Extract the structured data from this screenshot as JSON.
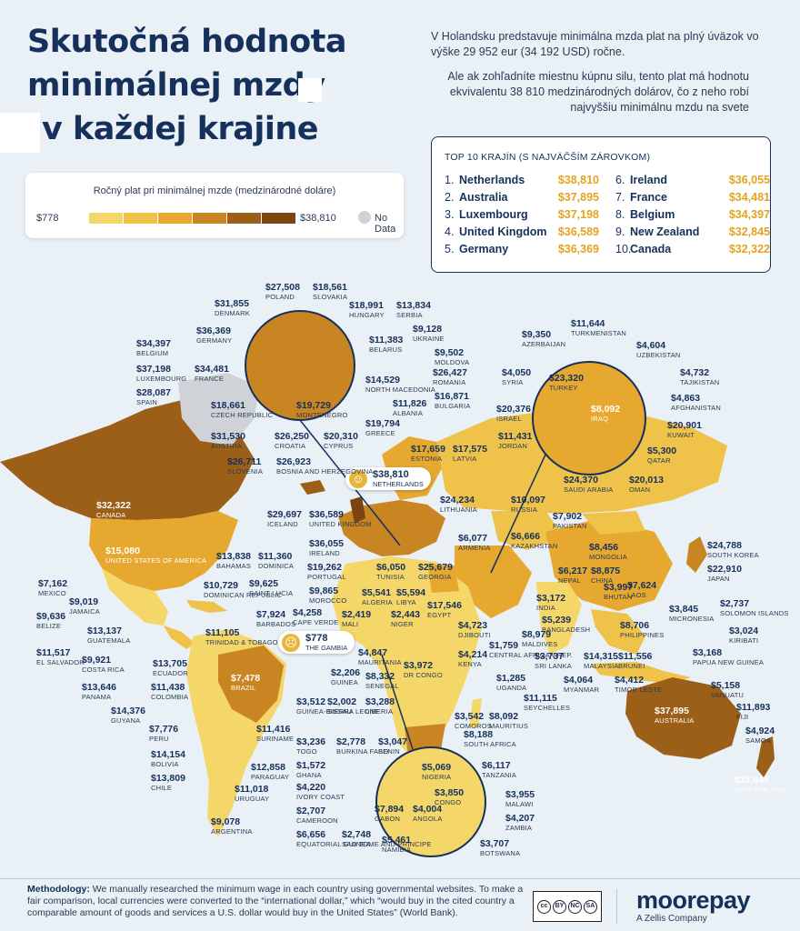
{
  "title": {
    "line1": "Skutočná hodnota",
    "line2": "minimálnej mzdy",
    "line3": "v každej krajine"
  },
  "intro": {
    "p1": "V Holandsku predstavuje minimálna mzda plat na plný úväzok vo výške 29 952 eur (34 192 USD) ročne.",
    "p2": "Ale ak zohľadníte miestnu kúpnu silu, tento plat má hodnotu ekvivalentu 38 810 medzinárodných dolárov, čo z neho robí najvyššiu minimálnu mzdu na svete"
  },
  "legend": {
    "title": "Ročný plat pri minimálnej mzde (medzinárodné doláre)",
    "min": "$778",
    "max": "$38,810",
    "no_data": "No Data",
    "scale_colors": [
      "#f4d768",
      "#efc24a",
      "#e6a82f",
      "#c98521",
      "#9c5f17",
      "#7a4510"
    ],
    "no_data_color": "#cfd3d8"
  },
  "top10": {
    "title": "TOP 10 KRAJÍN (S NAJVÄČŠÍM ZÁROVKOM)",
    "items": [
      {
        "rank": "1.",
        "name": "Netherlands",
        "value": "$38,810"
      },
      {
        "rank": "2.",
        "name": "Australia",
        "value": "$37,895"
      },
      {
        "rank": "3.",
        "name": "Luxembourg",
        "value": "$37,198"
      },
      {
        "rank": "4.",
        "name": "United Kingdom",
        "value": "$36,589"
      },
      {
        "rank": "5.",
        "name": "Germany",
        "value": "$36,369"
      },
      {
        "rank": "6.",
        "name": "Ireland",
        "value": "$36,055"
      },
      {
        "rank": "7.",
        "name": "France",
        "value": "$34,481"
      },
      {
        "rank": "8.",
        "name": "Belgium",
        "value": "$34,397"
      },
      {
        "rank": "9.",
        "name": "New Zealand",
        "value": "$32,845"
      },
      {
        "rank": "10.",
        "name": "Canada",
        "value": "$32,322"
      }
    ]
  },
  "callouts": {
    "max": {
      "value": "$38,810",
      "name": "NETHERLANDS",
      "icon": "smile-icon"
    },
    "min": {
      "value": "$778",
      "name": "THE GAMBIA",
      "icon": "sad-icon"
    }
  },
  "countries": [
    {
      "id": "poland",
      "value": "$27,508",
      "name": "POLAND"
    },
    {
      "id": "slovakia",
      "value": "$18,561",
      "name": "SLOVAKIA"
    },
    {
      "id": "denmark",
      "value": "$31,855",
      "name": "DENMARK"
    },
    {
      "id": "hungary",
      "value": "$18,991",
      "name": "HUNGARY"
    },
    {
      "id": "serbia",
      "value": "$13,834",
      "name": "SERBIA"
    },
    {
      "id": "germany",
      "value": "$36,369",
      "name": "GERMANY"
    },
    {
      "id": "ukraine",
      "value": "$9,128",
      "name": "UKRAINE"
    },
    {
      "id": "belgium",
      "value": "$34,397",
      "name": "BELGIUM"
    },
    {
      "id": "belarus",
      "value": "$11,383",
      "name": "BELARUS"
    },
    {
      "id": "moldova",
      "value": "$9,502",
      "name": "MOLDOVA"
    },
    {
      "id": "luxembourg",
      "value": "$37,198",
      "name": "LUXEMBOURG"
    },
    {
      "id": "france",
      "value": "$34,481",
      "name": "FRANCE"
    },
    {
      "id": "romania",
      "value": "$26,427",
      "name": "ROMANIA"
    },
    {
      "id": "spain",
      "value": "$28,087",
      "name": "SPAIN"
    },
    {
      "id": "north-macedonia",
      "value": "$14,529",
      "name": "NORTH MACEDONIA"
    },
    {
      "id": "bulgaria",
      "value": "$16,871",
      "name": "BULGARIA"
    },
    {
      "id": "czech",
      "value": "$18,661",
      "name": "CZECH REPUBLIC"
    },
    {
      "id": "albania",
      "value": "$11,826",
      "name": "ALBANIA"
    },
    {
      "id": "montenegro",
      "value": "$19,729",
      "name": "MONTENEGRO"
    },
    {
      "id": "greece",
      "value": "$19,794",
      "name": "GREECE"
    },
    {
      "id": "austria",
      "value": "$31,530",
      "name": "AUSTRIA"
    },
    {
      "id": "croatia",
      "value": "$26,250",
      "name": "CROATIA"
    },
    {
      "id": "cyprus",
      "value": "$20,310",
      "name": "CYPRUS"
    },
    {
      "id": "slovenia",
      "value": "$26,711",
      "name": "SLOVENIA"
    },
    {
      "id": "bosnia",
      "value": "$26,923",
      "name": "BOSNIA AND HERZEGOVINA"
    },
    {
      "id": "estonia",
      "value": "$17,659",
      "name": "ESTONIA"
    },
    {
      "id": "latvia",
      "value": "$17,575",
      "name": "LATVIA"
    },
    {
      "id": "lithuania",
      "value": "$24,234",
      "name": "LITHUANIA"
    },
    {
      "id": "iceland",
      "value": "$29,697",
      "name": "ICELAND"
    },
    {
      "id": "uk",
      "value": "$36,589",
      "name": "UNITED KINGDOM"
    },
    {
      "id": "ireland",
      "value": "$36,055",
      "name": "IRELAND"
    },
    {
      "id": "portugal",
      "value": "$19,262",
      "name": "PORTUGAL"
    },
    {
      "id": "morocco",
      "value": "$9,865",
      "name": "MOROCCO"
    },
    {
      "id": "tunisia",
      "value": "$6,050",
      "name": "TUNISIA"
    },
    {
      "id": "algeria",
      "value": "$5,541",
      "name": "ALGERIA"
    },
    {
      "id": "libya",
      "value": "$5,594",
      "name": "LIBYA"
    },
    {
      "id": "georgia",
      "value": "$25,679",
      "name": "GEORGIA"
    },
    {
      "id": "armenia",
      "value": "$6,077",
      "name": "ARMENIA"
    },
    {
      "id": "egypt",
      "value": "$17,546",
      "name": "EGYPT"
    },
    {
      "id": "cape-verde",
      "value": "$4,258",
      "name": "CAPE VERDE"
    },
    {
      "id": "mali",
      "value": "$2,419",
      "name": "MALI"
    },
    {
      "id": "niger",
      "value": "$2,443",
      "name": "NIGER"
    },
    {
      "id": "mauritania",
      "value": "$4,847",
      "name": "MAURITANIA"
    },
    {
      "id": "senegal",
      "value": "$8,332",
      "name": "SENEGAL"
    },
    {
      "id": "guinea",
      "value": "$2,206",
      "name": "GUINEA"
    },
    {
      "id": "guinea-bissau",
      "value": "$3,512",
      "name": "GUINEA-BISSAU"
    },
    {
      "id": "sierra-leone",
      "value": "$2,002",
      "name": "SIERRA LEONE"
    },
    {
      "id": "liberia",
      "value": "$3,288",
      "name": "LIBERIA"
    },
    {
      "id": "djibouti",
      "value": "$4,723",
      "name": "DJIBOUTI"
    },
    {
      "id": "car",
      "value": "$1,759",
      "name": "CENTRAL AFRICAN REP."
    },
    {
      "id": "kenya",
      "value": "$4,214",
      "name": "KENYA"
    },
    {
      "id": "dr-congo",
      "value": "$3,972",
      "name": "DR CONGO"
    },
    {
      "id": "uganda",
      "value": "$1,285",
      "name": "UGANDA"
    },
    {
      "id": "seychelles",
      "value": "$11,115",
      "name": "SEYCHELLES"
    },
    {
      "id": "comoros",
      "value": "$3,542",
      "name": "COMOROS"
    },
    {
      "id": "mauritius",
      "value": "$8,092",
      "name": "MAURITIUS"
    },
    {
      "id": "south-africa",
      "value": "$8,188",
      "name": "SOUTH AFRICA"
    },
    {
      "id": "togo",
      "value": "$3,236",
      "name": "TOGO"
    },
    {
      "id": "burkina",
      "value": "$2,778",
      "name": "BURKINA FASO"
    },
    {
      "id": "benin",
      "value": "$3,047",
      "name": "BENIN"
    },
    {
      "id": "ghana",
      "value": "$1,572",
      "name": "GHANA"
    },
    {
      "id": "nigeria",
      "value": "$5,069",
      "name": "NIGERIA"
    },
    {
      "id": "tanzania",
      "value": "$6,117",
      "name": "TANZANIA"
    },
    {
      "id": "ivory-coast",
      "value": "$4,220",
      "name": "IVORY COAST"
    },
    {
      "id": "congo",
      "value": "$3,850",
      "name": "CONGO"
    },
    {
      "id": "malawi",
      "value": "$3,955",
      "name": "MALAWI"
    },
    {
      "id": "cameroon",
      "value": "$2,707",
      "name": "CAMEROON"
    },
    {
      "id": "gabon",
      "value": "$7,894",
      "name": "GABON"
    },
    {
      "id": "angola",
      "value": "$4,004",
      "name": "ANGOLA"
    },
    {
      "id": "zambia",
      "value": "$4,207",
      "name": "ZAMBIA"
    },
    {
      "id": "eq-guinea",
      "value": "$6,656",
      "name": "EQUATORIAL GUINEA"
    },
    {
      "id": "sao-tome",
      "value": "$2,748",
      "name": "SAO TOME AND PRINCIPE"
    },
    {
      "id": "namibia",
      "value": "$5,461",
      "name": "NAMIBIA"
    },
    {
      "id": "botswana",
      "value": "$3,707",
      "name": "BOTSWANA"
    },
    {
      "id": "azerbaijan",
      "value": "$9,350",
      "name": "AZERBAIJAN"
    },
    {
      "id": "turkmenistan",
      "value": "$11,644",
      "name": "TURKMENISTAN"
    },
    {
      "id": "uzbekistan",
      "value": "$4,604",
      "name": "UZBEKISTAN"
    },
    {
      "id": "syria",
      "value": "$4,050",
      "name": "SYRIA"
    },
    {
      "id": "turkey",
      "value": "$23,320",
      "name": "TURKEY"
    },
    {
      "id": "tajikistan",
      "value": "$4,732",
      "name": "TAJIKISTAN"
    },
    {
      "id": "israel",
      "value": "$20,376",
      "name": "ISRAEL"
    },
    {
      "id": "iraq",
      "value": "$8,092",
      "name": "IRAQ"
    },
    {
      "id": "afghanistan",
      "value": "$4,863",
      "name": "AFGHANISTAN"
    },
    {
      "id": "jordan",
      "value": "$11,431",
      "name": "JORDAN"
    },
    {
      "id": "kuwait",
      "value": "$20,901",
      "name": "KUWAIT"
    },
    {
      "id": "qatar",
      "value": "$5,300",
      "name": "QATAR"
    },
    {
      "id": "saudi-arabia",
      "value": "$24,370",
      "name": "SAUDI ARABIA"
    },
    {
      "id": "oman",
      "value": "$20,013",
      "name": "OMAN"
    },
    {
      "id": "russia",
      "value": "$10,097",
      "name": "RUSSIA"
    },
    {
      "id": "pakistan",
      "value": "$7,902",
      "name": "PAKISTAN"
    },
    {
      "id": "kazakhstan",
      "value": "$6,666",
      "name": "KAZAKHSTAN"
    },
    {
      "id": "mongolia",
      "value": "$8,456",
      "name": "MONGOLIA"
    },
    {
      "id": "south-korea",
      "value": "$24,788",
      "name": "SOUTH KOREA"
    },
    {
      "id": "japan",
      "value": "$22,910",
      "name": "JAPAN"
    },
    {
      "id": "nepal",
      "value": "$6,217",
      "name": "NEPAL"
    },
    {
      "id": "china",
      "value": "$8,875",
      "name": "CHINA"
    },
    {
      "id": "laos",
      "value": "$7,624",
      "name": "LAOS"
    },
    {
      "id": "india",
      "value": "$3,172",
      "name": "INDIA"
    },
    {
      "id": "bhutan",
      "value": "$3,997",
      "name": "BHUTAN"
    },
    {
      "id": "micronesia",
      "value": "$3,845",
      "name": "MICRONESIA"
    },
    {
      "id": "solomon",
      "value": "$2,737",
      "name": "SOLOMON ISLANDS"
    },
    {
      "id": "bangladesh",
      "value": "$5,239",
      "name": "BANGLADESH"
    },
    {
      "id": "maldives",
      "value": "$8,979",
      "name": "MALDIVES"
    },
    {
      "id": "philippines",
      "value": "$8,706",
      "name": "PHILIPPINES"
    },
    {
      "id": "kiribati",
      "value": "$3,024",
      "name": "KIRIBATI"
    },
    {
      "id": "sri-lanka",
      "value": "$3,737",
      "name": "SRI LANKA"
    },
    {
      "id": "malaysia",
      "value": "$14,315",
      "name": "MALAYSIA"
    },
    {
      "id": "brunei",
      "value": "$11,556",
      "name": "BRUNEI"
    },
    {
      "id": "png",
      "value": "$3,168",
      "name": "PAPUA NEW GUINEA"
    },
    {
      "id": "myanmar",
      "value": "$4,064",
      "name": "MYANMAR"
    },
    {
      "id": "timor",
      "value": "$4,412",
      "name": "TIMOR LESTE"
    },
    {
      "id": "vanuatu",
      "value": "$5,158",
      "name": "VANUATU"
    },
    {
      "id": "fiji",
      "value": "$11,893",
      "name": "FIJI"
    },
    {
      "id": "australia",
      "value": "$37,895",
      "name": "AUSTRALIA"
    },
    {
      "id": "samoa",
      "value": "$4,924",
      "name": "SAMOA"
    },
    {
      "id": "new-zealand",
      "value": "$32,845",
      "name": "NEW ZEALAND"
    },
    {
      "id": "canada",
      "value": "$32,322",
      "name": "CANADA"
    },
    {
      "id": "usa",
      "value": "$15,080",
      "name": "UNITED STATES OF AMERICA"
    },
    {
      "id": "bahamas",
      "value": "$13,838",
      "name": "BAHAMAS"
    },
    {
      "id": "dominica",
      "value": "$11,360",
      "name": "DOMINICA"
    },
    {
      "id": "mexico",
      "value": "$7,162",
      "name": "MEXICO"
    },
    {
      "id": "dominican",
      "value": "$10,729",
      "name": "DOMINICAN REPUBLIC"
    },
    {
      "id": "saint-lucia",
      "value": "$9,625",
      "name": "SAINT LUCIA"
    },
    {
      "id": "jamaica",
      "value": "$9,019",
      "name": "JAMAICA"
    },
    {
      "id": "belize",
      "value": "$9,636",
      "name": "BELIZE"
    },
    {
      "id": "barbados",
      "value": "$7,924",
      "name": "BARBADOS"
    },
    {
      "id": "guatemala",
      "value": "$13,137",
      "name": "GUATEMALA"
    },
    {
      "id": "trinidad",
      "value": "$11,105",
      "name": "TRINIDAD & TOBAGO"
    },
    {
      "id": "el-salvador",
      "value": "$11,517",
      "name": "EL SALVADOR"
    },
    {
      "id": "costa-rica",
      "value": "$9,921",
      "name": "COSTA RICA"
    },
    {
      "id": "ecuador",
      "value": "$13,705",
      "name": "ECUADOR"
    },
    {
      "id": "panama",
      "value": "$13,646",
      "name": "PANAMA"
    },
    {
      "id": "colombia",
      "value": "$11,438",
      "name": "COLOMBIA"
    },
    {
      "id": "brazil",
      "value": "$7,478",
      "name": "BRAZIL"
    },
    {
      "id": "guyana",
      "value": "$14,376",
      "name": "GUYANA"
    },
    {
      "id": "peru",
      "value": "$7,776",
      "name": "PERU"
    },
    {
      "id": "suriname",
      "value": "$11,416",
      "name": "SURINAME"
    },
    {
      "id": "bolivia",
      "value": "$14,154",
      "name": "BOLIVIA"
    },
    {
      "id": "paraguay",
      "value": "$12,858",
      "name": "PARAGUAY"
    },
    {
      "id": "chile",
      "value": "$13,809",
      "name": "CHILE"
    },
    {
      "id": "uruguay",
      "value": "$11,018",
      "name": "URUGUAY"
    },
    {
      "id": "argentina",
      "value": "$9,078",
      "name": "ARGENTINA"
    }
  ],
  "footer": {
    "methodology_label": "Methodology:",
    "methodology_text": "We manually researched the minimum wage in each country using governmental websites. To make a fair comparison, local currencies were converted to the “international dollar,” which “would buy in the cited country a comparable amount of goods and services a U.S. dollar would buy in the United States” (World Bank).",
    "license": {
      "cc": "cc",
      "by": "BY",
      "nc": "NC",
      "sa": "SA"
    },
    "brand": "moorepay",
    "brand_sub": "A Zellis Company"
  }
}
